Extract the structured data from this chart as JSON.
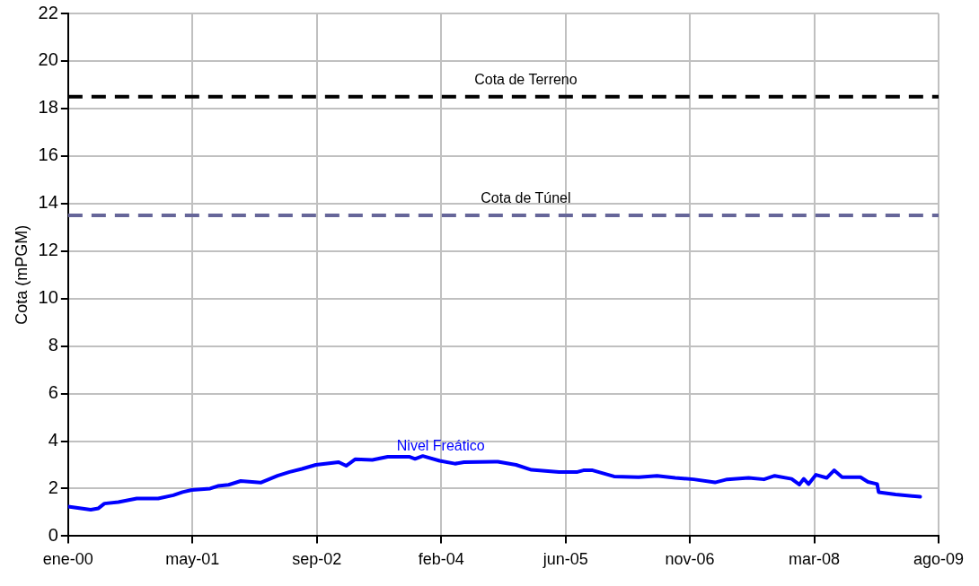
{
  "chart_data": {
    "type": "line",
    "ylabel": "Cota (mPGM)",
    "xlim": [
      "2000-01-01",
      "2009-08-01"
    ],
    "xticks": [
      {
        "value": "2000-01-01",
        "label": "ene-00"
      },
      {
        "value": "2001-05-15",
        "label": "may-01"
      },
      {
        "value": "2002-09-27",
        "label": "sep-02"
      },
      {
        "value": "2004-02-09",
        "label": "feb-04"
      },
      {
        "value": "2005-06-23",
        "label": "jun-05"
      },
      {
        "value": "2006-11-05",
        "label": "nov-06"
      },
      {
        "value": "2008-03-19",
        "label": "mar-08"
      },
      {
        "value": "2009-08-01",
        "label": "ago-09"
      }
    ],
    "ylim": [
      0,
      22
    ],
    "yticks": [
      0,
      2,
      4,
      6,
      8,
      10,
      12,
      14,
      16,
      18,
      20,
      22
    ],
    "grid": true,
    "legend": false,
    "marker": "none",
    "line_style": "solid",
    "ref_lines": [
      {
        "axis": "y",
        "value": 18.5,
        "label": "Cota de Terreno",
        "color": "#000000",
        "line_style": "dashed"
      },
      {
        "axis": "y",
        "value": 13.5,
        "label": "Cota de Túnel",
        "color": "#666699",
        "line_style": "dashed"
      }
    ],
    "series": [
      {
        "name": "Nivel Freático",
        "color": "#0000ff",
        "x": [
          "2000-01-01",
          "2000-04-01",
          "2000-05-02",
          "2000-05-26",
          "2000-07-21",
          "2000-10-03",
          "2000-12-28",
          "2001-02-27",
          "2001-04-05",
          "2001-05-12",
          "2001-07-25",
          "2001-08-25",
          "2001-10-07",
          "2001-11-25",
          "2002-02-13",
          "2002-04-22",
          "2002-06-10",
          "2002-07-29",
          "2002-09-23",
          "2002-12-24",
          "2003-01-23",
          "2003-03-01",
          "2003-05-08",
          "2003-07-09",
          "2003-10-03",
          "2003-10-27",
          "2003-11-27",
          "2004-02-03",
          "2004-04-04",
          "2004-05-11",
          "2004-09-11",
          "2004-09-24",
          "2004-12-06",
          "2005-02-06",
          "2005-05-28",
          "2005-08-10",
          "2005-09-03",
          "2005-10-10",
          "2006-01-04",
          "2006-04-13",
          "2006-06-26",
          "2006-09-07",
          "2006-11-20",
          "2007-02-14",
          "2007-04-04",
          "2007-06-29",
          "2007-08-30",
          "2007-10-12",
          "2007-12-19",
          "2008-01-19",
          "2008-02-06",
          "2008-02-25",
          "2008-03-26",
          "2008-05-08",
          "2008-06-07",
          "2008-07-09",
          "2008-09-21",
          "2008-10-21",
          "2008-11-27",
          "2008-12-03",
          "2009-02-09",
          "2009-05-19"
        ],
        "values": [
          1.24,
          1.11,
          1.17,
          1.37,
          1.43,
          1.58,
          1.58,
          1.72,
          1.85,
          1.94,
          2.0,
          2.11,
          2.16,
          2.32,
          2.25,
          2.54,
          2.7,
          2.83,
          3.0,
          3.11,
          2.96,
          3.24,
          3.21,
          3.34,
          3.34,
          3.25,
          3.37,
          3.17,
          3.05,
          3.11,
          3.13,
          3.13,
          3.0,
          2.79,
          2.7,
          2.7,
          2.77,
          2.77,
          2.51,
          2.48,
          2.54,
          2.45,
          2.39,
          2.26,
          2.39,
          2.45,
          2.39,
          2.54,
          2.41,
          2.17,
          2.41,
          2.19,
          2.58,
          2.45,
          2.77,
          2.48,
          2.48,
          2.28,
          2.19,
          1.85,
          1.75,
          1.66
        ]
      }
    ]
  }
}
